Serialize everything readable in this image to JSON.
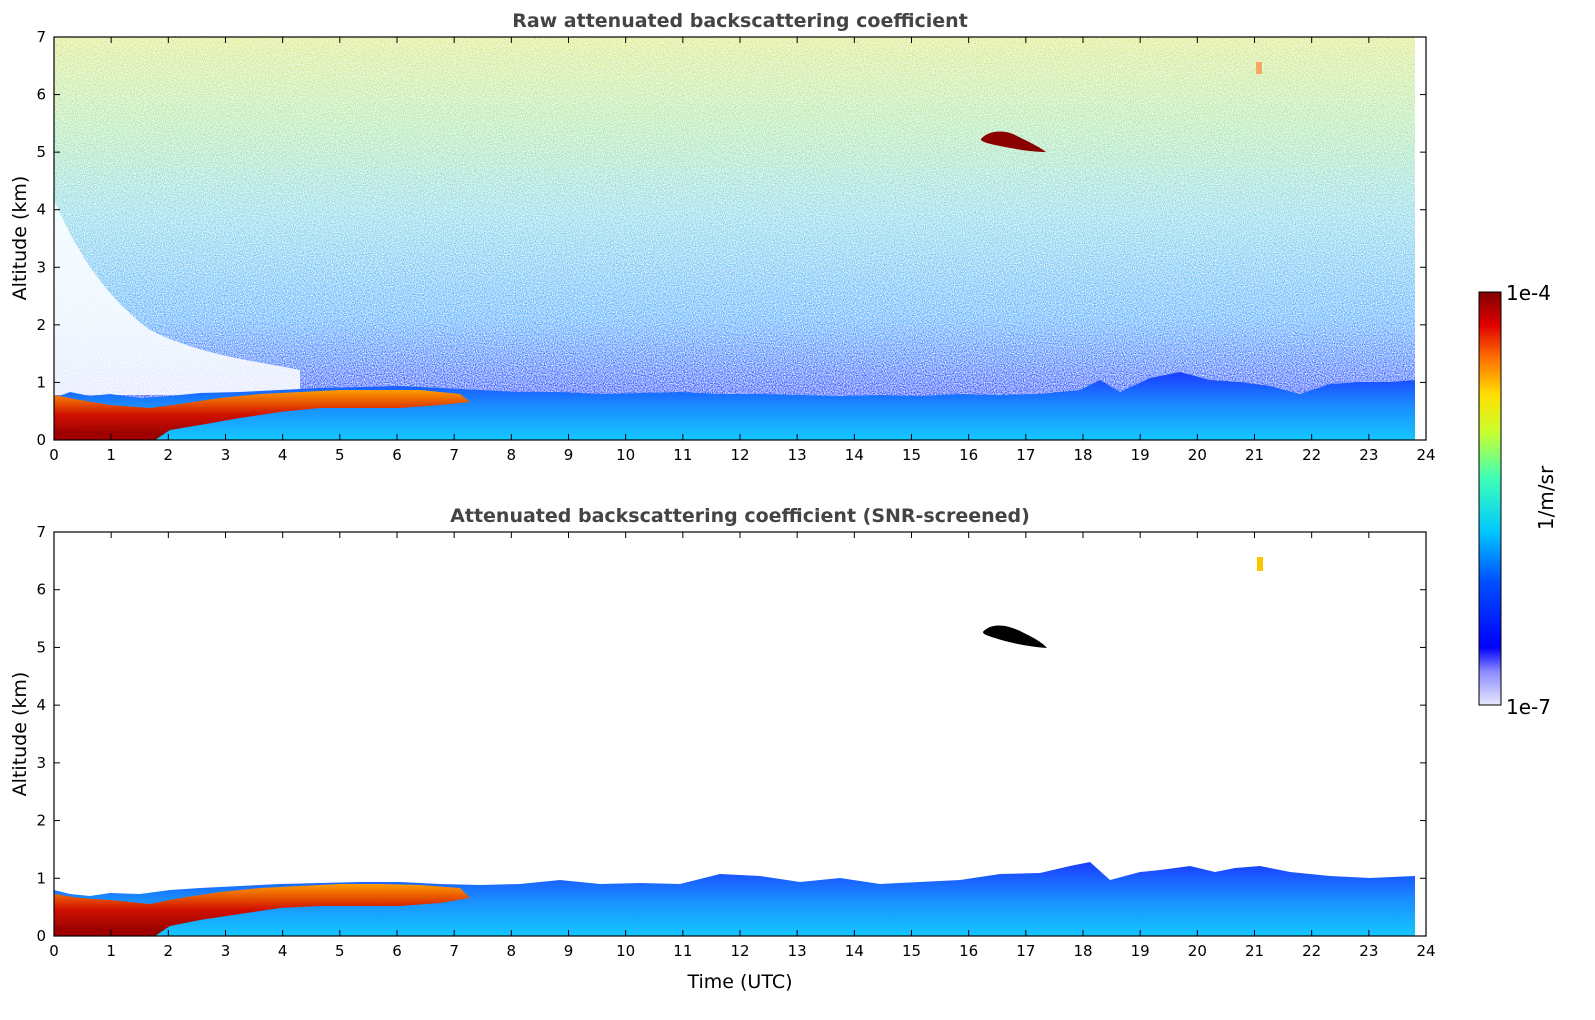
{
  "chart_data": [
    {
      "type": "heatmap",
      "title": "Raw attenuated backscattering coefficient",
      "xlabel": "",
      "ylabel": "Altitude (km)",
      "xlim": [
        0,
        24
      ],
      "ylim": [
        0,
        7
      ],
      "xticks": [
        "0",
        "1",
        "2",
        "3",
        "4",
        "5",
        "6",
        "7",
        "8",
        "9",
        "10",
        "11",
        "12",
        "13",
        "14",
        "15",
        "16",
        "17",
        "18",
        "19",
        "20",
        "21",
        "22",
        "23",
        "24"
      ],
      "yticks": [
        "0",
        "1",
        "2",
        "3",
        "4",
        "5",
        "6",
        "7"
      ],
      "data_extent_x": [
        0,
        23.8
      ],
      "features": [
        {
          "desc": "boundary layer",
          "x": [
            0,
            23.8
          ],
          "top_km": [
            0.6,
            1.0
          ]
        },
        {
          "desc": "elevated cloud",
          "x": [
            16.3,
            17.4
          ],
          "y": [
            5.0,
            5.4
          ]
        },
        {
          "desc": "noisy signal",
          "x": [
            0,
            23.8
          ],
          "y": [
            1.0,
            7.0
          ]
        }
      ]
    },
    {
      "type": "heatmap",
      "title": "Attenuated backscattering coefficient (SNR-screened)",
      "xlabel": "Time (UTC)",
      "ylabel": "Altitude (km)",
      "xlim": [
        0,
        24
      ],
      "ylim": [
        0,
        7
      ],
      "xticks": [
        "0",
        "1",
        "2",
        "3",
        "4",
        "5",
        "6",
        "7",
        "8",
        "9",
        "10",
        "11",
        "12",
        "13",
        "14",
        "15",
        "16",
        "17",
        "18",
        "19",
        "20",
        "21",
        "22",
        "23",
        "24"
      ],
      "yticks": [
        "0",
        "1",
        "2",
        "3",
        "4",
        "5",
        "6",
        "7"
      ],
      "data_extent_x": [
        0,
        23.8
      ],
      "features": [
        {
          "desc": "boundary layer",
          "x": [
            0,
            23.8
          ],
          "top_km": [
            0.6,
            1.3
          ]
        },
        {
          "desc": "elevated cloud",
          "x": [
            16.3,
            17.4
          ],
          "y": [
            5.0,
            5.4
          ]
        },
        {
          "desc": "small cloud",
          "x": [
            21.0,
            21.2
          ],
          "y": [
            6.3,
            6.6
          ]
        }
      ]
    }
  ],
  "colorbar": {
    "max_label": "1e-4",
    "min_label": "1e-7",
    "unit": "1/m/sr",
    "scale": "log",
    "colormap": "jet"
  }
}
